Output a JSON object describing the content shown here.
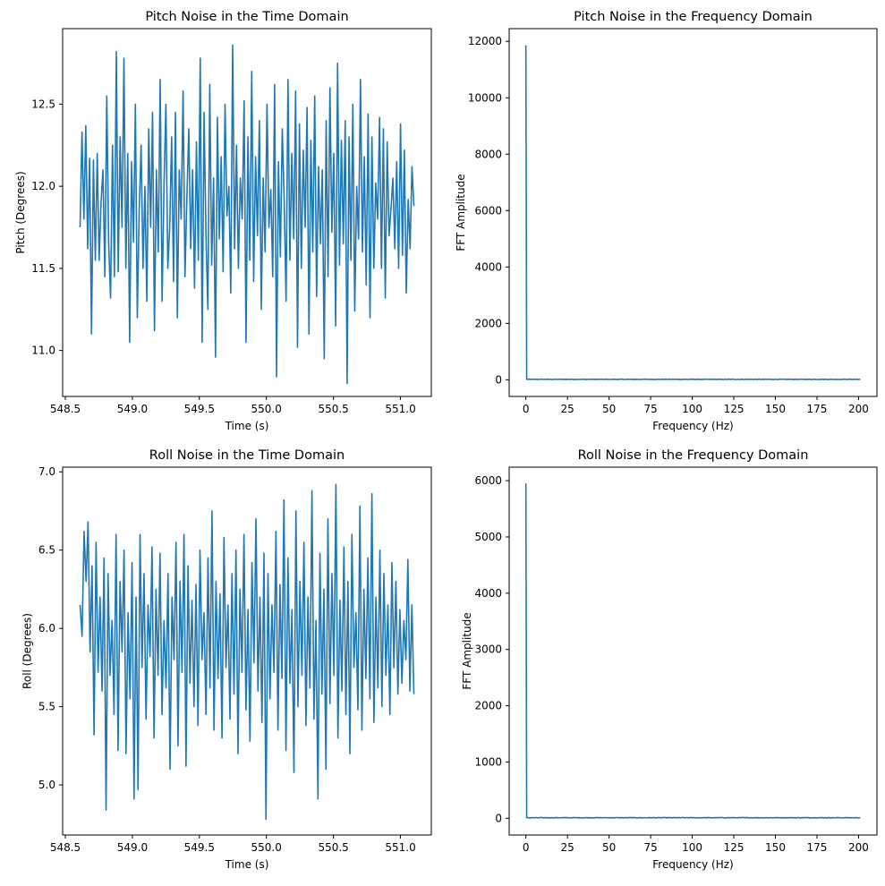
{
  "colors": {
    "line": "#1f77b4",
    "axis": "#000000",
    "background": "#ffffff"
  },
  "chart_data": [
    {
      "type": "line",
      "title": "Pitch Noise in the Time Domain",
      "xlabel": "Time (s)",
      "ylabel": "Pitch (Degrees)",
      "xlim": [
        548.48,
        551.23
      ],
      "ylim": [
        10.72,
        12.96
      ],
      "xticks": [
        548.5,
        549.0,
        549.5,
        550.0,
        550.5,
        551.0
      ],
      "xtick_labels": [
        "548.5",
        "549.0",
        "549.5",
        "550.0",
        "550.5",
        "551.0"
      ],
      "yticks": [
        11.0,
        11.5,
        12.0,
        12.5
      ],
      "ytick_labels": [
        "11.0",
        "11.5",
        "12.0",
        "12.5"
      ],
      "grid": false,
      "series": [
        {
          "x_range": [
            548.61,
            551.1
          ],
          "values": [
            11.75,
            12.33,
            11.8,
            12.37,
            11.62,
            12.17,
            11.1,
            12.16,
            11.55,
            12.2,
            11.55,
            11.9,
            12.1,
            11.45,
            12.55,
            11.65,
            11.32,
            12.25,
            11.45,
            12.82,
            11.48,
            12.3,
            11.75,
            12.78,
            11.5,
            12.2,
            11.05,
            12.15,
            11.66,
            12.5,
            11.2,
            11.85,
            12.25,
            11.5,
            12.0,
            11.3,
            12.35,
            11.75,
            12.45,
            11.12,
            12.1,
            11.6,
            12.65,
            11.3,
            12.0,
            12.5,
            11.5,
            11.75,
            12.3,
            11.42,
            12.45,
            11.2,
            12.1,
            11.8,
            12.58,
            11.45,
            11.93,
            12.35,
            11.62,
            12.1,
            11.38,
            12.27,
            11.55,
            12.78,
            11.05,
            12.45,
            11.7,
            11.25,
            12.62,
            11.52,
            12.05,
            10.96,
            12.42,
            11.68,
            12.18,
            11.48,
            12.5,
            11.82,
            12.0,
            11.35,
            12.86,
            11.62,
            12.25,
            11.5,
            12.05,
            11.8,
            12.52,
            11.05,
            12.3,
            11.55,
            12.7,
            11.42,
            12.18,
            11.7,
            12.4,
            11.25,
            12.05,
            11.6,
            12.5,
            11.75,
            11.98,
            11.45,
            12.62,
            10.84,
            12.15,
            11.57,
            12.35,
            11.92,
            11.3,
            12.65,
            11.55,
            12.2,
            11.68,
            12.58,
            11.02,
            12.38,
            11.5,
            12.22,
            11.75,
            12.48,
            11.1,
            12.28,
            11.6,
            12.55,
            11.33,
            12.12,
            11.65,
            12.1,
            10.95,
            12.4,
            11.45,
            12.6,
            11.72,
            12.2,
            11.15,
            12.75,
            11.52,
            12.28,
            11.65,
            12.4,
            10.8,
            12.3,
            11.55,
            12.5,
            11.24,
            12.0,
            11.68,
            12.65,
            11.6,
            12.18,
            11.4,
            12.44,
            11.2,
            12.3,
            11.5,
            12.02,
            11.8,
            12.42,
            11.5,
            12.35,
            11.32,
            12.27,
            11.7,
            11.86,
            12.05,
            11.62,
            12.15,
            11.5,
            12.38,
            11.58,
            12.22,
            11.35,
            11.92,
            11.62,
            12.12,
            11.88
          ]
        }
      ]
    },
    {
      "type": "line",
      "title": "Pitch Noise in the Frequency Domain",
      "xlabel": "Frequency (Hz)",
      "ylabel": "FFT Amplitude",
      "xlim": [
        -10.05,
        211.05
      ],
      "ylim": [
        -592,
        12452
      ],
      "xticks": [
        0,
        25,
        50,
        75,
        100,
        125,
        150,
        175,
        200
      ],
      "xtick_labels": [
        "0",
        "25",
        "50",
        "75",
        "100",
        "125",
        "150",
        "175",
        "200"
      ],
      "yticks": [
        0,
        2000,
        4000,
        6000,
        8000,
        10000,
        12000
      ],
      "ytick_labels": [
        "0",
        "2000",
        "4000",
        "6000",
        "8000",
        "10000",
        "12000"
      ],
      "grid": false,
      "series": [
        {
          "spike": {
            "x": 0,
            "y": 11860
          },
          "x_range": [
            0,
            201
          ],
          "noise_floor": 15
        }
      ]
    },
    {
      "type": "line",
      "title": "Roll Noise in the Time Domain",
      "xlabel": "Time (s)",
      "ylabel": "Roll (Degrees)",
      "xlim": [
        548.48,
        551.23
      ],
      "ylim": [
        4.68,
        7.03
      ],
      "xticks": [
        548.5,
        549.0,
        549.5,
        550.0,
        550.5,
        551.0
      ],
      "xtick_labels": [
        "548.5",
        "549.0",
        "549.5",
        "550.0",
        "550.5",
        "551.0"
      ],
      "yticks": [
        5.0,
        5.5,
        6.0,
        6.5,
        7.0
      ],
      "ytick_labels": [
        "5.0",
        "5.5",
        "6.0",
        "6.5",
        "7.0"
      ],
      "grid": false,
      "series": [
        {
          "x_range": [
            548.61,
            551.1
          ],
          "values": [
            6.15,
            5.95,
            6.62,
            6.3,
            6.68,
            5.85,
            6.4,
            5.32,
            6.55,
            5.72,
            6.2,
            5.6,
            6.45,
            4.84,
            6.35,
            5.7,
            6.05,
            5.45,
            6.6,
            5.22,
            6.3,
            5.85,
            6.5,
            5.2,
            6.1,
            5.55,
            6.42,
            4.91,
            6.2,
            4.97,
            6.6,
            5.75,
            6.35,
            5.42,
            6.15,
            5.82,
            6.52,
            5.3,
            6.25,
            5.7,
            6.48,
            5.45,
            6.05,
            5.62,
            6.35,
            5.1,
            6.2,
            5.8,
            6.55,
            5.25,
            6.3,
            5.72,
            6.6,
            5.12,
            6.4,
            5.65,
            6.18,
            5.5,
            6.28,
            5.38,
            6.5,
            5.8,
            6.1,
            5.45,
            6.45,
            5.62,
            6.75,
            5.35,
            6.3,
            5.68,
            6.22,
            5.3,
            6.58,
            5.75,
            6.15,
            5.42,
            6.35,
            5.58,
            6.5,
            5.2,
            6.25,
            5.72,
            6.6,
            5.48,
            6.12,
            5.28,
            6.42,
            5.78,
            6.7,
            5.6,
            6.2,
            5.4,
            6.48,
            4.78,
            6.35,
            5.55,
            6.15,
            5.72,
            6.62,
            5.35,
            6.28,
            5.68,
            6.82,
            5.22,
            6.45,
            5.65,
            6.12,
            5.08,
            6.75,
            5.5,
            6.3,
            5.7,
            6.55,
            5.38,
            6.2,
            5.62,
            6.88,
            5.42,
            6.05,
            4.91,
            6.48,
            5.58,
            6.25,
            5.1,
            6.7,
            5.52,
            6.35,
            5.7,
            6.92,
            5.3,
            6.18,
            5.6,
            6.52,
            5.45,
            6.3,
            5.2,
            6.6,
            5.75,
            6.1,
            5.48,
            6.78,
            5.35,
            6.25,
            5.68,
            6.45,
            5.55,
            6.86,
            5.4,
            6.2,
            5.62,
            6.5,
            5.5,
            6.35,
            5.7,
            6.15,
            5.45,
            6.42,
            5.75,
            6.3,
            5.58,
            6.12,
            5.65,
            6.05,
            5.8,
            6.44,
            5.6,
            6.15,
            5.58
          ]
        }
      ]
    },
    {
      "type": "line",
      "title": "Roll Noise in the Frequency Domain",
      "xlabel": "Frequency (Hz)",
      "ylabel": "FFT Amplitude",
      "xlim": [
        -10.05,
        211.05
      ],
      "ylim": [
        -297,
        6240
      ],
      "xticks": [
        0,
        25,
        50,
        75,
        100,
        125,
        150,
        175,
        200
      ],
      "xtick_labels": [
        "0",
        "25",
        "50",
        "75",
        "100",
        "125",
        "150",
        "175",
        "200"
      ],
      "yticks": [
        0,
        1000,
        2000,
        3000,
        4000,
        5000,
        6000
      ],
      "ytick_labels": [
        "0",
        "1000",
        "2000",
        "3000",
        "4000",
        "5000",
        "6000"
      ],
      "grid": false,
      "series": [
        {
          "spike": {
            "x": 0,
            "y": 5950
          },
          "x_range": [
            0,
            201
          ],
          "noise_floor": 10
        }
      ]
    }
  ]
}
